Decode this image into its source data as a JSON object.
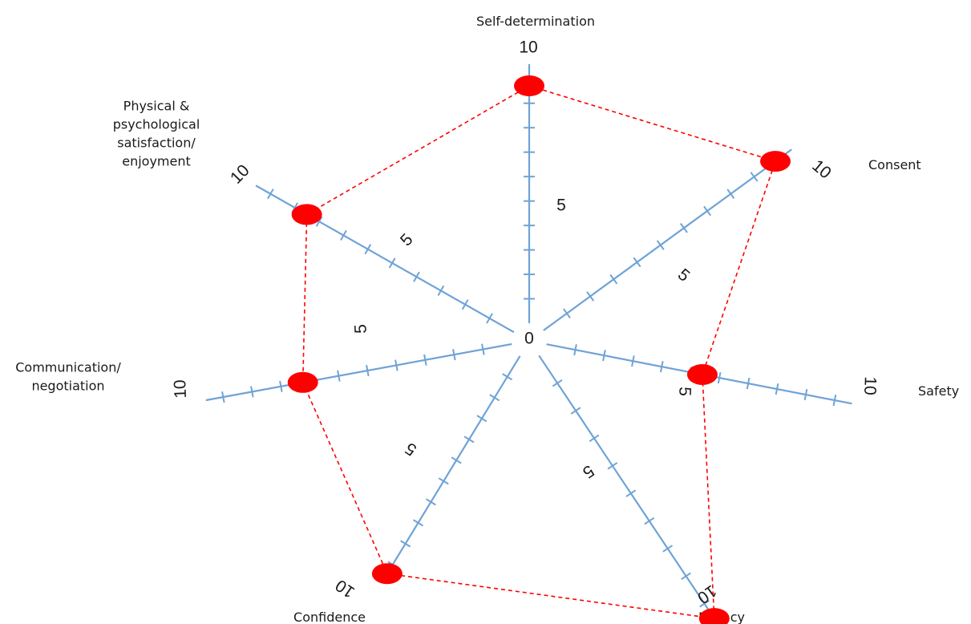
{
  "chart_data": {
    "type": "radar",
    "scale": {
      "min": 0,
      "max": 10,
      "mid": 5,
      "ticks_per_axis": 10
    },
    "center_label": "0",
    "axes": [
      {
        "name": "Self-determination",
        "lines": [
          "Self-determination"
        ],
        "value": 8.8,
        "max_label": "10",
        "mid_label": "5"
      },
      {
        "name": "Consent",
        "lines": [
          "Consent"
        ],
        "value": 10,
        "max_label": "10",
        "mid_label": "5"
      },
      {
        "name": "Safety",
        "lines": [
          "Safety"
        ],
        "value": 5.5,
        "max_label": "10",
        "mid_label": "5"
      },
      {
        "name": "Privacy",
        "lines": [
          "Privacy"
        ],
        "value": 9.6,
        "max_label": "10",
        "mid_label": "5"
      },
      {
        "name": "Confidence",
        "lines": [
          "Confidence"
        ],
        "value": 10,
        "max_label": "10",
        "mid_label": "5"
      },
      {
        "name": "Communication/ negotiation",
        "lines": [
          "Communication/",
          "negotiation"
        ],
        "value": 7.1,
        "max_label": "10",
        "mid_label": "5"
      },
      {
        "name": "Physical & psychological satisfaction/ enjoyment",
        "lines": [
          "Physical &",
          "psychological",
          "satisfaction/",
          "enjoyment"
        ],
        "value": 8.4,
        "max_label": "10",
        "mid_label": "5"
      }
    ],
    "colors": {
      "axis": "#6fa3d6",
      "series": "#ff0000",
      "text": "#1a1a1a"
    },
    "legend": "none",
    "grid": false
  }
}
